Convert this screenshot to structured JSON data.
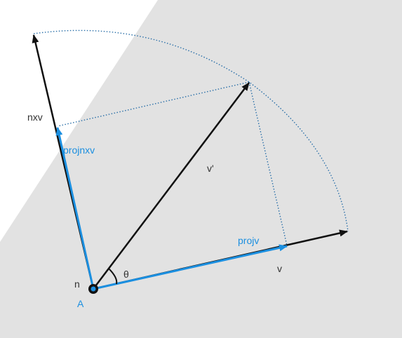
{
  "diagram": {
    "labels": {
      "origin": "A",
      "axis": "n",
      "angle": "θ",
      "vector": "v",
      "rotated": "v'",
      "cross": "nxv",
      "proj_v": "projv",
      "proj_cross": "projnxv"
    },
    "colors": {
      "background_plane": "#e2e2e2",
      "black_vector": "#111111",
      "blue_vector": "#1b8fe0",
      "dotted_line": "#2a6fa8",
      "label_dark": "#333333",
      "label_blue": "#1b8fe0"
    }
  }
}
